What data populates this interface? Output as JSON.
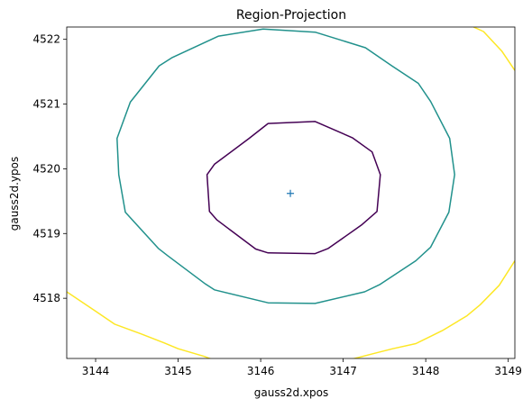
{
  "chart_data": {
    "type": "contour",
    "title": "Region-Projection",
    "xlabel": "gauss2d.xpos",
    "ylabel": "gauss2d.ypos",
    "xlim": [
      3143.65,
      3149.08
    ],
    "ylim": [
      4517.07,
      4522.19
    ],
    "xticks": [
      3144,
      3145,
      3146,
      3147,
      3148,
      3149
    ],
    "yticks": [
      4518,
      4519,
      4520,
      4521,
      4522
    ],
    "xtick_labels": [
      "3144",
      "3145",
      "3146",
      "3147",
      "3148",
      "3149"
    ],
    "ytick_labels": [
      "4518",
      "4519",
      "4520",
      "4521",
      "4522"
    ],
    "grid": false,
    "best_fit": {
      "x": 3146.36,
      "y": 4519.62,
      "marker": "+",
      "color": "#1f77b4"
    },
    "series": [
      {
        "color": "#440154",
        "closed": true,
        "points": [
          [
            3146.09,
            4520.7
          ],
          [
            3146.66,
            4520.73
          ],
          [
            3147.11,
            4520.48
          ],
          [
            3147.35,
            4520.26
          ],
          [
            3147.45,
            4519.91
          ],
          [
            3147.41,
            4519.34
          ],
          [
            3147.22,
            4519.13
          ],
          [
            3146.82,
            4518.77
          ],
          [
            3146.66,
            4518.69
          ],
          [
            3146.09,
            4518.7
          ],
          [
            3145.94,
            4518.76
          ],
          [
            3145.47,
            4519.21
          ],
          [
            3145.38,
            4519.34
          ],
          [
            3145.35,
            4519.91
          ],
          [
            3145.44,
            4520.07
          ],
          [
            3145.86,
            4520.47
          ]
        ]
      },
      {
        "color": "#21918c",
        "closed": true,
        "points": [
          [
            3146.03,
            4522.16
          ],
          [
            3146.66,
            4522.11
          ],
          [
            3147.27,
            4521.87
          ],
          [
            3147.59,
            4521.59
          ],
          [
            3147.91,
            4521.32
          ],
          [
            3148.06,
            4521.04
          ],
          [
            3148.29,
            4520.47
          ],
          [
            3148.35,
            4519.91
          ],
          [
            3148.28,
            4519.33
          ],
          [
            3148.06,
            4518.79
          ],
          [
            3147.88,
            4518.58
          ],
          [
            3147.44,
            4518.21
          ],
          [
            3147.26,
            4518.1
          ],
          [
            3146.66,
            4517.92
          ],
          [
            3146.09,
            4517.93
          ],
          [
            3145.44,
            4518.13
          ],
          [
            3145.33,
            4518.22
          ],
          [
            3144.87,
            4518.66
          ],
          [
            3144.76,
            4518.77
          ],
          [
            3144.36,
            4519.33
          ],
          [
            3144.28,
            4519.91
          ],
          [
            3144.26,
            4520.47
          ],
          [
            3144.42,
            4521.03
          ],
          [
            3144.77,
            4521.59
          ],
          [
            3144.93,
            4521.72
          ],
          [
            3145.49,
            4522.05
          ]
        ]
      },
      {
        "color": "#fde725",
        "closed": false,
        "points": [
          [
            3143.65,
            4518.1
          ],
          [
            3144.0,
            4517.8
          ],
          [
            3144.23,
            4517.6
          ],
          [
            3144.55,
            4517.45
          ],
          [
            3144.83,
            4517.31
          ],
          [
            3145.0,
            4517.22
          ],
          [
            3145.32,
            4517.1
          ],
          [
            3145.42,
            4517.05
          ]
        ]
      },
      {
        "color": "#fde725",
        "closed": false,
        "points": [
          [
            3147.08,
            4517.05
          ],
          [
            3147.32,
            4517.13
          ],
          [
            3147.6,
            4517.22
          ],
          [
            3147.88,
            4517.3
          ],
          [
            3148.2,
            4517.5
          ],
          [
            3148.5,
            4517.73
          ],
          [
            3148.66,
            4517.9
          ],
          [
            3148.89,
            4518.2
          ],
          [
            3149.08,
            4518.58
          ]
        ]
      },
      {
        "color": "#fde725",
        "closed": false,
        "points": [
          [
            3148.58,
            4522.19
          ],
          [
            3148.7,
            4522.12
          ],
          [
            3148.92,
            4521.82
          ],
          [
            3149.08,
            4521.52
          ]
        ]
      }
    ]
  }
}
